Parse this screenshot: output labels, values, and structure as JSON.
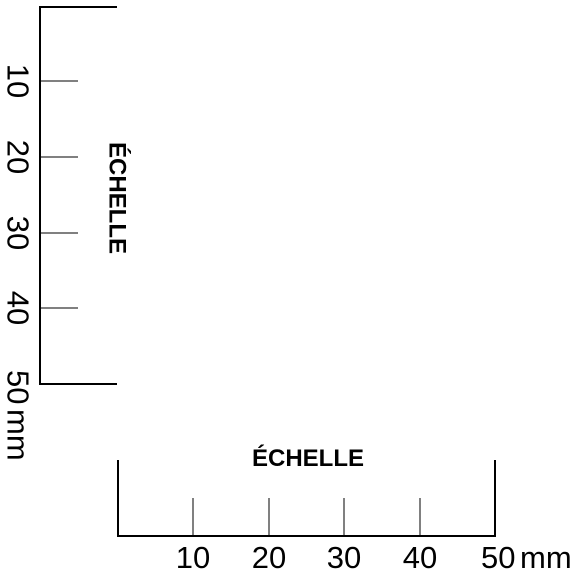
{
  "vertical_scale": {
    "title": "ÉCHELLE",
    "tick_labels": [
      "10",
      "20",
      "30",
      "40",
      "50"
    ],
    "unit": "mm"
  },
  "horizontal_scale": {
    "title": "ÉCHELLE",
    "tick_labels": [
      "10",
      "20",
      "30",
      "40",
      "50"
    ],
    "unit": "mm"
  },
  "colors": {
    "line": "#000000",
    "background": "#ffffff"
  }
}
